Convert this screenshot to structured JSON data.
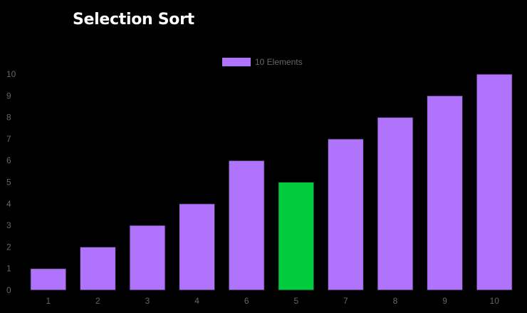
{
  "page": {
    "title": "Selection Sort"
  },
  "colors": {
    "background": "#000000",
    "bar_default": "#b073fc",
    "bar_highlight": "#00cc3d",
    "bar_border": "#1a1a1a",
    "tick_text": "#666666",
    "title_text": "#ffffff"
  },
  "chart_data": {
    "type": "bar",
    "title": "Selection Sort",
    "categories": [
      "1",
      "2",
      "3",
      "4",
      "6",
      "5",
      "7",
      "8",
      "9",
      "10"
    ],
    "series": [
      {
        "name": "10 Elements",
        "values": [
          1,
          2,
          3,
          4,
          6,
          5,
          7,
          8,
          9,
          10
        ],
        "color": "#b073fc"
      }
    ],
    "highlight_index": 5,
    "highlight_color": "#00cc3d",
    "ylim": [
      0,
      10
    ],
    "yticks": [
      "0",
      "1",
      "2",
      "3",
      "4",
      "5",
      "6",
      "7",
      "8",
      "9",
      "10"
    ],
    "grid": false,
    "legend": "top-center",
    "xlabel": "",
    "ylabel": ""
  }
}
